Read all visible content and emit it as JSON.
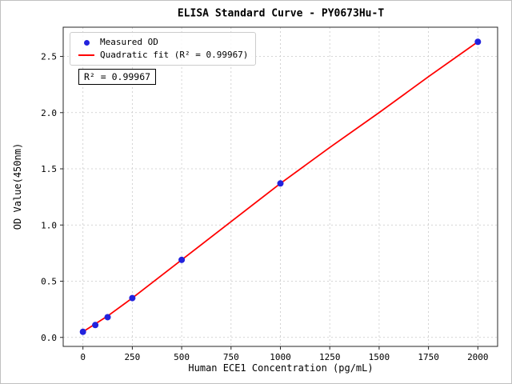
{
  "chart_data": {
    "type": "scatter",
    "title": "ELISA Standard Curve - PY0673Hu-T",
    "xlabel": "Human ECE1 Concentration (pg/mL)",
    "ylabel": "OD Value(450nm)",
    "annotation": "R² = 0.99967",
    "r_squared": 0.99967,
    "xlim": [
      -100,
      2100
    ],
    "ylim": [
      -0.08,
      2.76
    ],
    "x_ticks": [
      0,
      250,
      500,
      750,
      1000,
      1250,
      1500,
      1750,
      2000
    ],
    "x_tick_labels": [
      "0",
      "250",
      "500",
      "750",
      "1000",
      "1250",
      "1500",
      "1750",
      "2000"
    ],
    "y_ticks": [
      0.0,
      0.5,
      1.0,
      1.5,
      2.0,
      2.5
    ],
    "y_tick_labels": [
      "0.0",
      "0.5",
      "1.0",
      "1.5",
      "2.0",
      "2.5"
    ],
    "grid": true,
    "legend_position": "upper left",
    "colors": {
      "scatter": "#2222dd",
      "fit_line": "#ff0000",
      "grid": "#c8c8c8"
    },
    "series": [
      {
        "name": "Measured OD",
        "type": "scatter",
        "color": "#2222dd",
        "x": [
          0,
          62.5,
          125,
          250,
          500,
          1000,
          2000
        ],
        "y": [
          0.05,
          0.11,
          0.18,
          0.35,
          0.69,
          1.37,
          2.63
        ]
      },
      {
        "name": "Quadratic fit (R² = 0.99967)",
        "type": "line",
        "color": "#ff0000",
        "x": [
          0,
          62.5,
          125,
          250,
          500,
          750,
          1000,
          1250,
          1500,
          1750,
          2000
        ],
        "y": [
          0.05,
          0.12,
          0.19,
          0.35,
          0.69,
          1.03,
          1.37,
          1.69,
          2.0,
          2.32,
          2.63
        ]
      }
    ]
  }
}
